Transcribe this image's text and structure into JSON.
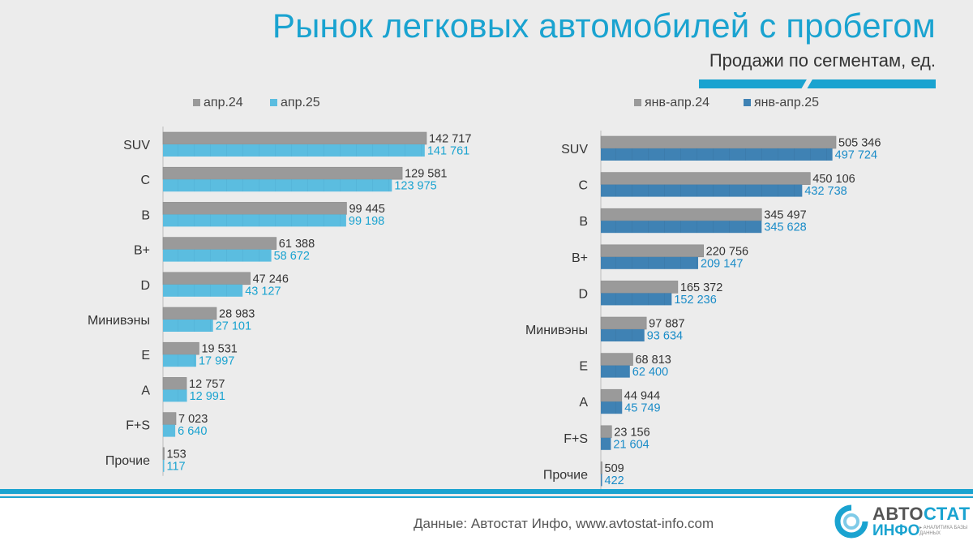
{
  "header": {
    "title": "Рынок легковых автомобилей с пробегом",
    "subtitle": "Продажи по сегментам, ед."
  },
  "footer": {
    "source": "Данные: Автостат Инфо, www.avtostat-info.com",
    "logo_word1_a": "АВТО",
    "logo_word1_b": "СТАТ",
    "logo_word2": "ИНФО",
    "logo_tag": "▸ АНАЛИТИКА БАЗЫ ДАННЫХ"
  },
  "colors": {
    "gray": "#9a9a9a",
    "light_blue": "#5bbde0",
    "dark_blue": "#3f82b4",
    "light_blue_text": "#1aa3d0",
    "dark_blue_text": "#1a8cc8"
  },
  "chart_data": [
    {
      "type": "bar",
      "orientation": "horizontal",
      "title": "",
      "categories": [
        "SUV",
        "C",
        "B",
        "B+",
        "D",
        "Минивэны",
        "E",
        "A",
        "F+S",
        "Прочие"
      ],
      "series": [
        {
          "name": "апр.24",
          "values": [
            142717,
            129581,
            99445,
            61388,
            47246,
            28983,
            19531,
            12757,
            7023,
            153
          ],
          "labels": [
            "142 717",
            "129 581",
            "99 445",
            "61 388",
            "47 246",
            "28 983",
            "19 531",
            "12 757",
            "7 023",
            "153"
          ]
        },
        {
          "name": "апр.25",
          "values": [
            141761,
            123975,
            99198,
            58672,
            43127,
            27101,
            17997,
            12991,
            6640,
            117
          ],
          "labels": [
            "141 761",
            "123 975",
            "99 198",
            "58 672",
            "43 127",
            "27 101",
            "17 997",
            "12 991",
            "6 640",
            "117"
          ]
        }
      ],
      "xlim": [
        0,
        142717
      ],
      "legend": "top"
    },
    {
      "type": "bar",
      "orientation": "horizontal",
      "title": "",
      "categories": [
        "SUV",
        "C",
        "B",
        "B+",
        "D",
        "Минивэны",
        "E",
        "A",
        "F+S",
        "Прочие"
      ],
      "series": [
        {
          "name": "янв-апр.24",
          "values": [
            505346,
            450106,
            345497,
            220756,
            165372,
            97887,
            68813,
            44944,
            23156,
            509
          ],
          "labels": [
            "505 346",
            "450 106",
            "345 497",
            "220 756",
            "165 372",
            "97 887",
            "68 813",
            "44 944",
            "23 156",
            "509"
          ]
        },
        {
          "name": "янв-апр.25",
          "values": [
            497724,
            432738,
            345628,
            209147,
            152236,
            93634,
            62400,
            45749,
            21604,
            422
          ],
          "labels": [
            "497 724",
            "432 738",
            "345 628",
            "209 147",
            "152 236",
            "93 634",
            "62 400",
            "45 749",
            "21 604",
            "422"
          ]
        }
      ],
      "xlim": [
        0,
        505346
      ],
      "legend": "top"
    }
  ]
}
